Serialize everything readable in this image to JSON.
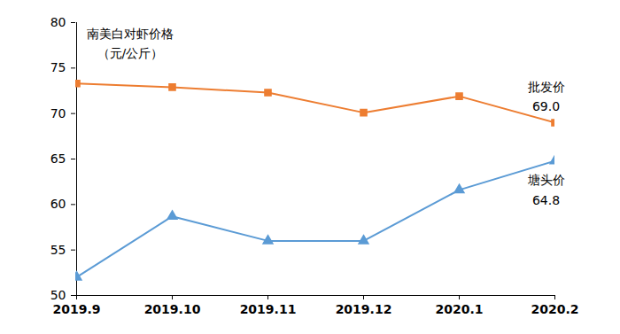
{
  "chart_data": {
    "type": "line",
    "title": "南美白对虾价格",
    "ylabel": "（元/公斤）",
    "categories": [
      "2019.9",
      "2019.10",
      "2019.11",
      "2019.12",
      "2020.1",
      "2020.2"
    ],
    "series": [
      {
        "name": "批发价",
        "color": "#ed7d31",
        "marker": "square",
        "line_style": "solid",
        "values": [
          73.3,
          72.9,
          72.3,
          70.1,
          71.9,
          69.0
        ],
        "value_labels": [
          null,
          null,
          null,
          null,
          null,
          "69.0"
        ]
      },
      {
        "name": "塘头价",
        "color": "#5b9bd5",
        "marker": "triangle",
        "line_style": "solid",
        "values": [
          52.0,
          58.7,
          56.0,
          56.0,
          61.6,
          64.8
        ],
        "value_labels": [
          null,
          null,
          null,
          null,
          null,
          "64.8"
        ]
      }
    ],
    "ylim": [
      50,
      80
    ],
    "yticks": [
      50,
      55,
      60,
      65,
      70,
      75,
      80
    ],
    "grid": false
  }
}
